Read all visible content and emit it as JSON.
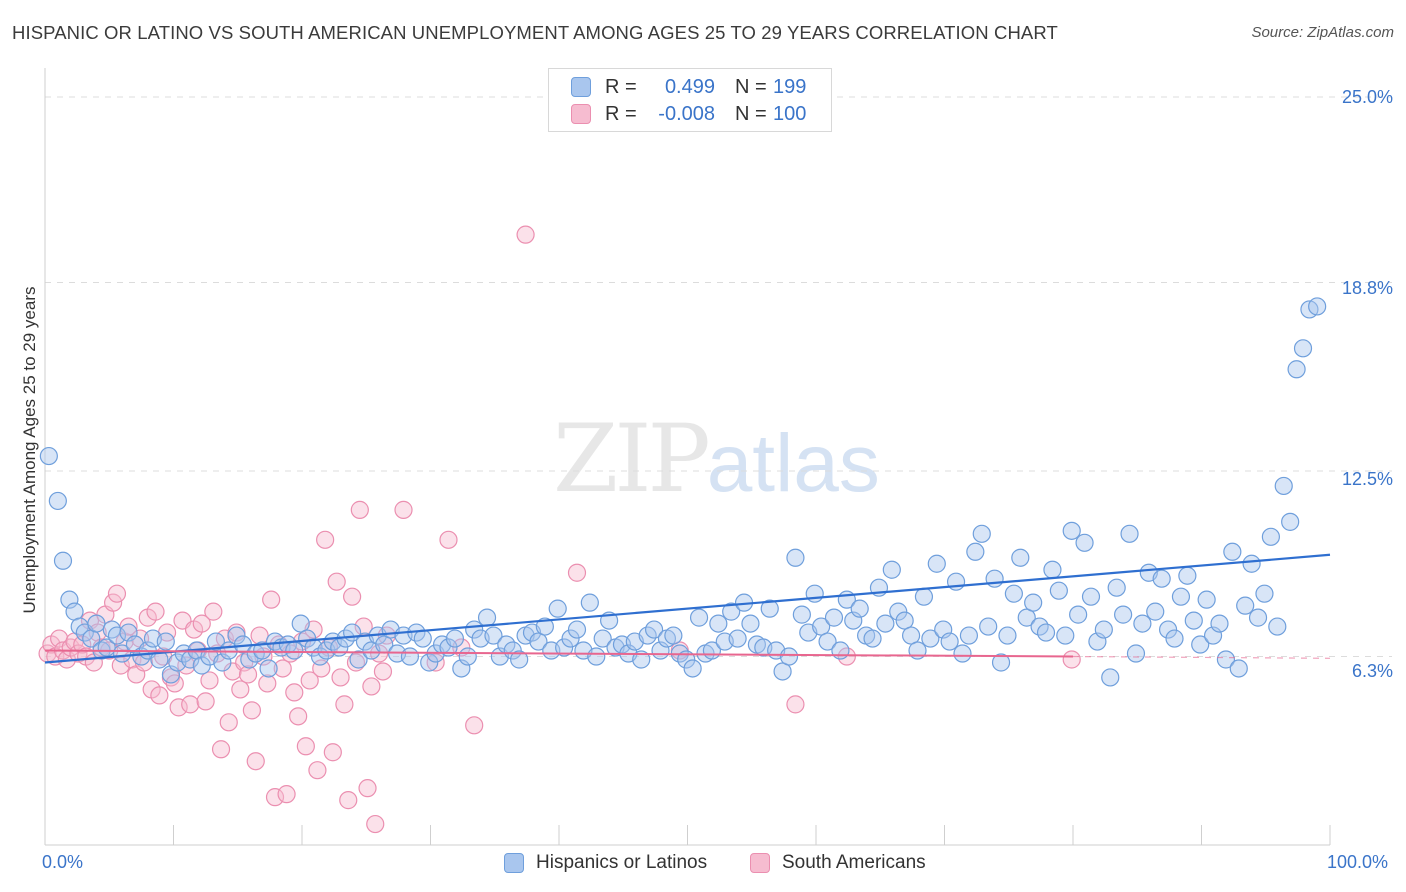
{
  "title": "HISPANIC OR LATINO VS SOUTH AMERICAN UNEMPLOYMENT AMONG AGES 25 TO 29 YEARS CORRELATION CHART",
  "source": "Source: ZipAtlas.com",
  "watermark": {
    "zip": "ZIP",
    "atlas": "atlas"
  },
  "legend": {
    "series1": {
      "r_label": "R =",
      "r_value": "0.499",
      "n_label": "N =",
      "n_value": "199"
    },
    "series2": {
      "r_label": "R =",
      "r_value": "-0.008",
      "n_label": "N =",
      "n_value": "100"
    }
  },
  "colors": {
    "blue_fill": "#a9c6ee",
    "blue_stroke": "#6f9fdc",
    "blue_line": "#2f6fd0",
    "pink_fill": "#f6bcd0",
    "pink_stroke": "#eb8fb0",
    "pink_line": "#e8668f",
    "accent_text": "#3a74c9"
  },
  "chart_data": {
    "type": "scatter",
    "title": "HISPANIC OR LATINO VS SOUTH AMERICAN UNEMPLOYMENT AMONG AGES 25 TO 29 YEARS CORRELATION CHART",
    "xlabel": "",
    "ylabel": "Unemployment Among Ages 25 to 29 years",
    "xlim": [
      0,
      100
    ],
    "ylim": [
      0,
      26.5
    ],
    "x_tick_labels": [
      "0.0%",
      "100.0%"
    ],
    "y_ticks": [
      6.3,
      12.5,
      18.8,
      25.0
    ],
    "y_tick_labels": [
      "6.3%",
      "12.5%",
      "18.8%",
      "25.0%"
    ],
    "grid": "horizontal dashed",
    "legend_position": "bottom",
    "series": [
      {
        "name": "Hispanics or Latinos",
        "color": "#a9c6ee",
        "trend": {
          "x": [
            0,
            100
          ],
          "y": [
            6.1,
            9.7
          ]
        },
        "points": [
          [
            0.3,
            13.0
          ],
          [
            1.0,
            11.5
          ],
          [
            1.4,
            9.5
          ],
          [
            1.9,
            8.2
          ],
          [
            2.3,
            7.8
          ],
          [
            2.7,
            7.3
          ],
          [
            3.1,
            7.1
          ],
          [
            3.6,
            6.9
          ],
          [
            4.0,
            7.4
          ],
          [
            4.4,
            6.5
          ],
          [
            4.8,
            6.6
          ],
          [
            5.2,
            7.2
          ],
          [
            5.6,
            7.0
          ],
          [
            6.0,
            6.4
          ],
          [
            6.5,
            7.1
          ],
          [
            7.0,
            6.7
          ],
          [
            7.5,
            6.3
          ],
          [
            8.0,
            6.5
          ],
          [
            8.4,
            6.9
          ],
          [
            8.9,
            6.2
          ],
          [
            9.4,
            6.8
          ],
          [
            9.8,
            5.7
          ],
          [
            10.3,
            6.1
          ],
          [
            10.8,
            6.4
          ],
          [
            11.3,
            6.2
          ],
          [
            11.8,
            6.5
          ],
          [
            12.2,
            6.0
          ],
          [
            12.8,
            6.3
          ],
          [
            13.3,
            6.8
          ],
          [
            13.8,
            6.1
          ],
          [
            14.3,
            6.5
          ],
          [
            14.9,
            7.0
          ],
          [
            15.4,
            6.7
          ],
          [
            15.9,
            6.2
          ],
          [
            16.4,
            6.4
          ],
          [
            16.9,
            6.5
          ],
          [
            17.4,
            5.9
          ],
          [
            17.9,
            6.8
          ],
          [
            18.4,
            6.6
          ],
          [
            18.9,
            6.7
          ],
          [
            19.4,
            6.5
          ],
          [
            19.9,
            7.4
          ],
          [
            20.4,
            6.9
          ],
          [
            20.9,
            6.6
          ],
          [
            21.4,
            6.3
          ],
          [
            21.9,
            6.5
          ],
          [
            22.4,
            6.8
          ],
          [
            22.9,
            6.6
          ],
          [
            23.4,
            6.9
          ],
          [
            23.9,
            7.1
          ],
          [
            24.4,
            6.2
          ],
          [
            24.9,
            6.8
          ],
          [
            25.4,
            6.5
          ],
          [
            25.9,
            7.0
          ],
          [
            26.4,
            6.7
          ],
          [
            26.9,
            7.2
          ],
          [
            27.4,
            6.4
          ],
          [
            27.9,
            7.0
          ],
          [
            28.4,
            6.3
          ],
          [
            28.9,
            7.1
          ],
          [
            29.4,
            6.9
          ],
          [
            29.9,
            6.1
          ],
          [
            30.4,
            6.4
          ],
          [
            30.9,
            6.7
          ],
          [
            31.4,
            6.6
          ],
          [
            31.9,
            6.9
          ],
          [
            32.4,
            5.9
          ],
          [
            32.9,
            6.3
          ],
          [
            33.4,
            7.2
          ],
          [
            33.9,
            6.9
          ],
          [
            34.4,
            7.6
          ],
          [
            34.9,
            7.0
          ],
          [
            35.4,
            6.3
          ],
          [
            35.9,
            6.7
          ],
          [
            36.4,
            6.5
          ],
          [
            36.9,
            6.2
          ],
          [
            37.4,
            7.0
          ],
          [
            37.9,
            7.1
          ],
          [
            38.4,
            6.8
          ],
          [
            38.9,
            7.3
          ],
          [
            39.4,
            6.5
          ],
          [
            39.9,
            7.9
          ],
          [
            40.4,
            6.6
          ],
          [
            40.9,
            6.9
          ],
          [
            41.4,
            7.2
          ],
          [
            41.9,
            6.5
          ],
          [
            42.4,
            8.1
          ],
          [
            42.9,
            6.3
          ],
          [
            43.4,
            6.9
          ],
          [
            43.9,
            7.5
          ],
          [
            44.4,
            6.6
          ],
          [
            44.9,
            6.7
          ],
          [
            45.4,
            6.4
          ],
          [
            45.9,
            6.8
          ],
          [
            46.4,
            6.2
          ],
          [
            46.9,
            7.0
          ],
          [
            47.4,
            7.2
          ],
          [
            47.9,
            6.5
          ],
          [
            48.4,
            6.9
          ],
          [
            48.9,
            7.0
          ],
          [
            49.4,
            6.4
          ],
          [
            49.9,
            6.2
          ],
          [
            50.4,
            5.9
          ],
          [
            50.9,
            7.6
          ],
          [
            51.4,
            6.4
          ],
          [
            51.9,
            6.5
          ],
          [
            52.4,
            7.4
          ],
          [
            52.9,
            6.8
          ],
          [
            53.4,
            7.8
          ],
          [
            53.9,
            6.9
          ],
          [
            54.4,
            8.1
          ],
          [
            54.9,
            7.4
          ],
          [
            55.4,
            6.7
          ],
          [
            55.9,
            6.6
          ],
          [
            56.4,
            7.9
          ],
          [
            56.9,
            6.5
          ],
          [
            57.4,
            5.8
          ],
          [
            57.9,
            6.3
          ],
          [
            58.4,
            9.6
          ],
          [
            58.9,
            7.7
          ],
          [
            59.4,
            7.1
          ],
          [
            59.9,
            8.4
          ],
          [
            60.4,
            7.3
          ],
          [
            60.9,
            6.8
          ],
          [
            61.4,
            7.6
          ],
          [
            61.9,
            6.5
          ],
          [
            62.4,
            8.2
          ],
          [
            62.9,
            7.5
          ],
          [
            63.4,
            7.9
          ],
          [
            63.9,
            7.0
          ],
          [
            64.4,
            6.9
          ],
          [
            64.9,
            8.6
          ],
          [
            65.4,
            7.4
          ],
          [
            65.9,
            9.2
          ],
          [
            66.4,
            7.8
          ],
          [
            66.9,
            7.5
          ],
          [
            67.4,
            7.0
          ],
          [
            67.9,
            6.5
          ],
          [
            68.4,
            8.3
          ],
          [
            68.9,
            6.9
          ],
          [
            69.4,
            9.4
          ],
          [
            69.9,
            7.2
          ],
          [
            70.4,
            6.8
          ],
          [
            70.9,
            8.8
          ],
          [
            71.4,
            6.4
          ],
          [
            71.9,
            7.0
          ],
          [
            72.4,
            9.8
          ],
          [
            72.9,
            10.4
          ],
          [
            73.4,
            7.3
          ],
          [
            73.9,
            8.9
          ],
          [
            74.4,
            6.1
          ],
          [
            74.9,
            7.0
          ],
          [
            75.4,
            8.4
          ],
          [
            75.9,
            9.6
          ],
          [
            76.4,
            7.6
          ],
          [
            76.9,
            8.1
          ],
          [
            77.4,
            7.3
          ],
          [
            77.9,
            7.1
          ],
          [
            78.4,
            9.2
          ],
          [
            78.9,
            8.5
          ],
          [
            79.4,
            7.0
          ],
          [
            79.9,
            10.5
          ],
          [
            80.4,
            7.7
          ],
          [
            80.9,
            10.1
          ],
          [
            81.4,
            8.3
          ],
          [
            81.9,
            6.8
          ],
          [
            82.4,
            7.2
          ],
          [
            82.9,
            5.6
          ],
          [
            83.4,
            8.6
          ],
          [
            83.9,
            7.7
          ],
          [
            84.4,
            10.4
          ],
          [
            84.9,
            6.4
          ],
          [
            85.4,
            7.4
          ],
          [
            85.9,
            9.1
          ],
          [
            86.4,
            7.8
          ],
          [
            86.9,
            8.9
          ],
          [
            87.4,
            7.2
          ],
          [
            87.9,
            6.9
          ],
          [
            88.4,
            8.3
          ],
          [
            88.9,
            9.0
          ],
          [
            89.4,
            7.5
          ],
          [
            89.9,
            6.7
          ],
          [
            90.4,
            8.2
          ],
          [
            90.9,
            7.0
          ],
          [
            91.4,
            7.4
          ],
          [
            91.9,
            6.2
          ],
          [
            92.4,
            9.8
          ],
          [
            92.9,
            5.9
          ],
          [
            93.4,
            8.0
          ],
          [
            93.9,
            9.4
          ],
          [
            94.4,
            7.6
          ],
          [
            94.9,
            8.4
          ],
          [
            95.4,
            10.3
          ],
          [
            95.9,
            7.3
          ],
          [
            96.4,
            12.0
          ],
          [
            96.9,
            10.8
          ],
          [
            97.4,
            15.9
          ],
          [
            97.9,
            16.6
          ],
          [
            98.4,
            17.9
          ],
          [
            99.0,
            18.0
          ]
        ]
      },
      {
        "name": "South Americans",
        "color": "#f6bcd0",
        "trend": {
          "x": [
            0,
            80
          ],
          "y": [
            6.5,
            6.3
          ]
        },
        "points": [
          [
            0.2,
            6.4
          ],
          [
            0.5,
            6.7
          ],
          [
            0.8,
            6.3
          ],
          [
            1.1,
            6.9
          ],
          [
            1.4,
            6.5
          ],
          [
            1.7,
            6.2
          ],
          [
            2.0,
            6.6
          ],
          [
            2.3,
            6.8
          ],
          [
            2.6,
            6.4
          ],
          [
            2.9,
            6.7
          ],
          [
            3.2,
            6.3
          ],
          [
            3.5,
            7.5
          ],
          [
            3.8,
            6.1
          ],
          [
            4.1,
            7.1
          ],
          [
            4.4,
            6.6
          ],
          [
            4.7,
            7.7
          ],
          [
            5.0,
            6.5
          ],
          [
            5.3,
            8.1
          ],
          [
            5.6,
            8.4
          ],
          [
            5.9,
            6.0
          ],
          [
            6.2,
            6.8
          ],
          [
            6.5,
            7.3
          ],
          [
            6.8,
            6.2
          ],
          [
            7.1,
            5.7
          ],
          [
            7.4,
            6.9
          ],
          [
            7.7,
            6.1
          ],
          [
            8.0,
            7.6
          ],
          [
            8.3,
            5.2
          ],
          [
            8.6,
            7.8
          ],
          [
            8.9,
            5.0
          ],
          [
            9.2,
            6.3
          ],
          [
            9.5,
            7.1
          ],
          [
            9.8,
            5.6
          ],
          [
            10.1,
            5.4
          ],
          [
            10.4,
            4.6
          ],
          [
            10.7,
            7.5
          ],
          [
            11.0,
            6.0
          ],
          [
            11.3,
            4.7
          ],
          [
            11.6,
            7.2
          ],
          [
            11.9,
            6.5
          ],
          [
            12.2,
            7.4
          ],
          [
            12.5,
            4.8
          ],
          [
            12.8,
            5.5
          ],
          [
            13.1,
            7.8
          ],
          [
            13.4,
            6.4
          ],
          [
            13.7,
            3.2
          ],
          [
            14.0,
            6.9
          ],
          [
            14.3,
            4.1
          ],
          [
            14.6,
            5.8
          ],
          [
            14.9,
            7.1
          ],
          [
            15.2,
            5.2
          ],
          [
            15.5,
            6.1
          ],
          [
            15.8,
            5.7
          ],
          [
            16.1,
            4.5
          ],
          [
            16.4,
            2.8
          ],
          [
            16.7,
            7.0
          ],
          [
            17.0,
            6.3
          ],
          [
            17.3,
            5.4
          ],
          [
            17.6,
            8.2
          ],
          [
            17.9,
            1.6
          ],
          [
            18.2,
            6.7
          ],
          [
            18.5,
            5.9
          ],
          [
            18.8,
            1.7
          ],
          [
            19.1,
            6.4
          ],
          [
            19.4,
            5.1
          ],
          [
            19.7,
            4.3
          ],
          [
            20.0,
            6.8
          ],
          [
            20.3,
            3.3
          ],
          [
            20.6,
            5.5
          ],
          [
            20.9,
            7.2
          ],
          [
            21.2,
            2.5
          ],
          [
            21.5,
            5.9
          ],
          [
            21.8,
            10.2
          ],
          [
            22.1,
            6.6
          ],
          [
            22.4,
            3.1
          ],
          [
            22.7,
            8.8
          ],
          [
            23.0,
            5.6
          ],
          [
            23.3,
            4.7
          ],
          [
            23.6,
            1.5
          ],
          [
            23.9,
            8.3
          ],
          [
            24.2,
            6.1
          ],
          [
            24.5,
            11.2
          ],
          [
            24.8,
            7.3
          ],
          [
            25.1,
            1.9
          ],
          [
            25.4,
            5.3
          ],
          [
            25.7,
            0.7
          ],
          [
            26.0,
            6.4
          ],
          [
            26.3,
            5.8
          ],
          [
            26.6,
            7.0
          ],
          [
            27.9,
            11.2
          ],
          [
            30.4,
            6.1
          ],
          [
            31.4,
            10.2
          ],
          [
            32.4,
            6.6
          ],
          [
            33.4,
            4.0
          ],
          [
            37.4,
            20.4
          ],
          [
            41.4,
            9.1
          ],
          [
            49.4,
            6.5
          ],
          [
            58.4,
            4.7
          ],
          [
            62.4,
            6.3
          ],
          [
            79.9,
            6.2
          ]
        ]
      }
    ]
  },
  "bottom_legend": {
    "series1": "Hispanics or Latinos",
    "series2": "South Americans"
  }
}
